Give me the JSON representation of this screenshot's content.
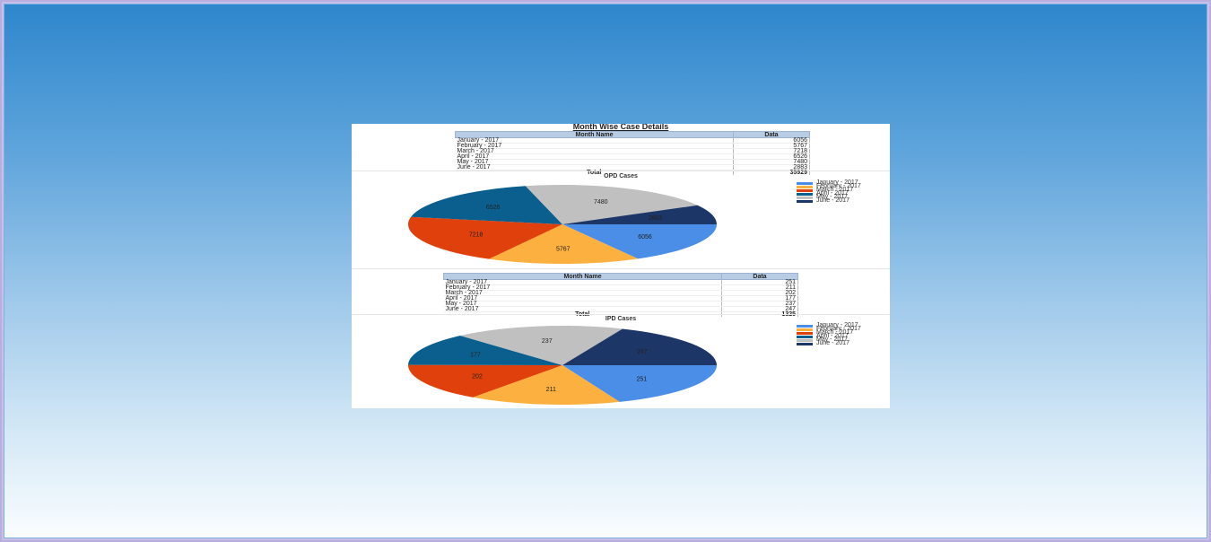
{
  "report": {
    "title": "Month Wise Case Details",
    "colors": [
      "#4a8ee8",
      "#fbb040",
      "#e0410c",
      "#0a5f8e",
      "#c0c0c0",
      "#1c3667"
    ]
  },
  "opd": {
    "table": {
      "headers": [
        "Month Name",
        "Data"
      ],
      "rows": [
        {
          "month": "January - 2017",
          "value": "6056"
        },
        {
          "month": "February - 2017",
          "value": "5767"
        },
        {
          "month": "March - 2017",
          "value": "7218"
        },
        {
          "month": "April - 2017",
          "value": "6526"
        },
        {
          "month": "May - 2017",
          "value": "7480"
        },
        {
          "month": "June - 2017",
          "value": "2883"
        }
      ],
      "total_label": "Total",
      "total_value": "35929"
    }
  },
  "ipd": {
    "table": {
      "headers": [
        "Month Name",
        "Data"
      ],
      "rows": [
        {
          "month": "January - 2017",
          "value": "251"
        },
        {
          "month": "February - 2017",
          "value": "211"
        },
        {
          "month": "March - 2017",
          "value": "202"
        },
        {
          "month": "April - 2017",
          "value": "177"
        },
        {
          "month": "May - 2017",
          "value": "237"
        },
        {
          "month": "June - 2017",
          "value": "247"
        }
      ],
      "total_label": "Total",
      "total_value": "1325"
    }
  },
  "chart_data": [
    {
      "type": "pie",
      "title": "OPD Cases",
      "categories": [
        "January - 2017",
        "February - 2017",
        "March - 2017",
        "April - 2017",
        "May - 2017",
        "June - 2017"
      ],
      "values": [
        6056,
        5767,
        7218,
        6526,
        7480,
        2883
      ],
      "legend": "right"
    },
    {
      "type": "pie",
      "title": "IPD Cases",
      "categories": [
        "January - 2017",
        "February - 2017",
        "March - 2017",
        "April - 2017",
        "May - 2017",
        "June - 2017"
      ],
      "values": [
        251,
        211,
        202,
        177,
        237,
        247
      ],
      "legend": "right"
    }
  ]
}
